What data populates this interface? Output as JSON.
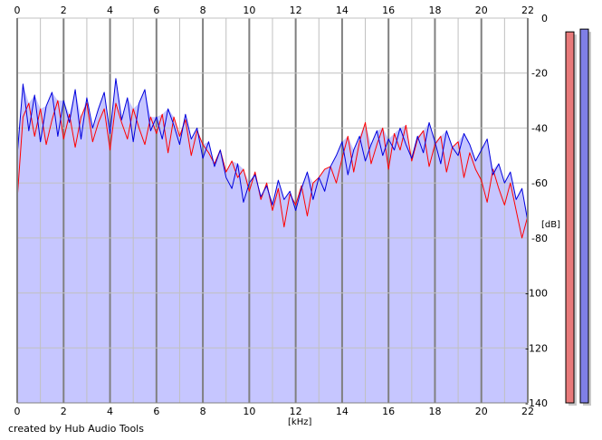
{
  "chart_data": {
    "type": "area",
    "title": "",
    "xlabel": "[kHz]",
    "ylabel": "[dB]",
    "xlim": [
      0,
      22
    ],
    "ylim": [
      -140,
      0
    ],
    "x_ticks": [
      0,
      2,
      4,
      6,
      8,
      10,
      12,
      14,
      16,
      18,
      20,
      22
    ],
    "y_ticks": [
      0,
      -20,
      -40,
      -60,
      -80,
      -100,
      -120,
      -140
    ],
    "grid": true,
    "colors": {
      "fill": "#c6c6ff",
      "red_channel": "#ff0000",
      "blue_channel": "#0000dd",
      "grid_major": "#808080",
      "grid_minor": "#c0c0c0"
    },
    "series": [
      {
        "color": "#ff0000",
        "x": [
          0.0,
          0.25,
          0.5,
          0.75,
          1.0,
          1.25,
          1.5,
          1.75,
          2.0,
          2.25,
          2.5,
          2.75,
          3.0,
          3.25,
          3.5,
          3.75,
          4.0,
          4.25,
          4.5,
          4.75,
          5.0,
          5.25,
          5.5,
          5.75,
          6.0,
          6.25,
          6.5,
          6.75,
          7.0,
          7.25,
          7.5,
          7.75,
          8.0,
          8.25,
          8.5,
          8.75,
          9.0,
          9.25,
          9.5,
          9.75,
          10.0,
          10.25,
          10.5,
          10.75,
          11.0,
          11.25,
          11.5,
          11.75,
          12.0,
          12.25,
          12.5,
          12.75,
          13.0,
          13.25,
          13.5,
          13.75,
          14.0,
          14.25,
          14.5,
          14.75,
          15.0,
          15.25,
          15.5,
          15.75,
          16.0,
          16.25,
          16.5,
          16.75,
          17.0,
          17.25,
          17.5,
          17.75,
          18.0,
          18.25,
          18.5,
          18.75,
          19.0,
          19.25,
          19.5,
          19.75,
          20.0,
          20.25,
          20.5,
          20.75,
          21.0,
          21.25,
          21.5,
          21.75,
          22.0
        ],
        "values": [
          -66,
          -36,
          -31,
          -43,
          -33,
          -46,
          -37,
          -30,
          -44,
          -35,
          -47,
          -36,
          -31,
          -45,
          -38,
          -33,
          -48,
          -31,
          -38,
          -44,
          -33,
          -40,
          -46,
          -36,
          -42,
          -35,
          -49,
          -36,
          -43,
          -37,
          -50,
          -41,
          -46,
          -49,
          -53,
          -48,
          -56,
          -52,
          -58,
          -55,
          -63,
          -56,
          -66,
          -60,
          -70,
          -62,
          -76,
          -64,
          -68,
          -61,
          -72,
          -60,
          -58,
          -55,
          -54,
          -60,
          -51,
          -43,
          -56,
          -45,
          -38,
          -53,
          -46,
          -40,
          -55,
          -42,
          -48,
          -39,
          -52,
          -44,
          -41,
          -54,
          -46,
          -43,
          -56,
          -47,
          -45,
          -58,
          -49,
          -55,
          -59,
          -67,
          -55,
          -62,
          -68,
          -60,
          -70,
          -80,
          -72
        ]
      },
      {
        "color": "#0000dd",
        "x": [
          0.0,
          0.25,
          0.5,
          0.75,
          1.0,
          1.25,
          1.5,
          1.75,
          2.0,
          2.25,
          2.5,
          2.75,
          3.0,
          3.25,
          3.5,
          3.75,
          4.0,
          4.25,
          4.5,
          4.75,
          5.0,
          5.25,
          5.5,
          5.75,
          6.0,
          6.25,
          6.5,
          6.75,
          7.0,
          7.25,
          7.5,
          7.75,
          8.0,
          8.25,
          8.5,
          8.75,
          9.0,
          9.25,
          9.5,
          9.75,
          10.0,
          10.25,
          10.5,
          10.75,
          11.0,
          11.25,
          11.5,
          11.75,
          12.0,
          12.25,
          12.5,
          12.75,
          13.0,
          13.25,
          13.5,
          13.75,
          14.0,
          14.25,
          14.5,
          14.75,
          15.0,
          15.25,
          15.5,
          15.75,
          16.0,
          16.25,
          16.5,
          16.75,
          17.0,
          17.25,
          17.5,
          17.75,
          18.0,
          18.25,
          18.5,
          18.75,
          19.0,
          19.25,
          19.5,
          19.75,
          20.0,
          20.25,
          20.5,
          20.75,
          21.0,
          21.25,
          21.5,
          21.75,
          22.0
        ],
        "values": [
          -50,
          -24,
          -41,
          -28,
          -45,
          -32,
          -27,
          -43,
          -30,
          -38,
          -26,
          -44,
          -29,
          -40,
          -33,
          -27,
          -42,
          -22,
          -37,
          -29,
          -45,
          -31,
          -26,
          -41,
          -36,
          -44,
          -33,
          -39,
          -46,
          -35,
          -44,
          -40,
          -51,
          -45,
          -54,
          -48,
          -58,
          -62,
          -53,
          -67,
          -60,
          -57,
          -65,
          -61,
          -68,
          -59,
          -66,
          -63,
          -70,
          -62,
          -56,
          -66,
          -58,
          -63,
          -54,
          -50,
          -45,
          -57,
          -48,
          -43,
          -52,
          -46,
          -41,
          -50,
          -44,
          -48,
          -40,
          -46,
          -51,
          -43,
          -49,
          -38,
          -45,
          -53,
          -41,
          -47,
          -50,
          -42,
          -46,
          -52,
          -48,
          -44,
          -57,
          -53,
          -60,
          -56,
          -66,
          -62,
          -74
        ]
      }
    ],
    "meters": [
      {
        "color": "#e87a7a",
        "level_db": -5
      },
      {
        "color": "#7f7fe6",
        "level_db": -4
      }
    ]
  },
  "footer": {
    "credit": "created by Hub Audio Tools"
  }
}
